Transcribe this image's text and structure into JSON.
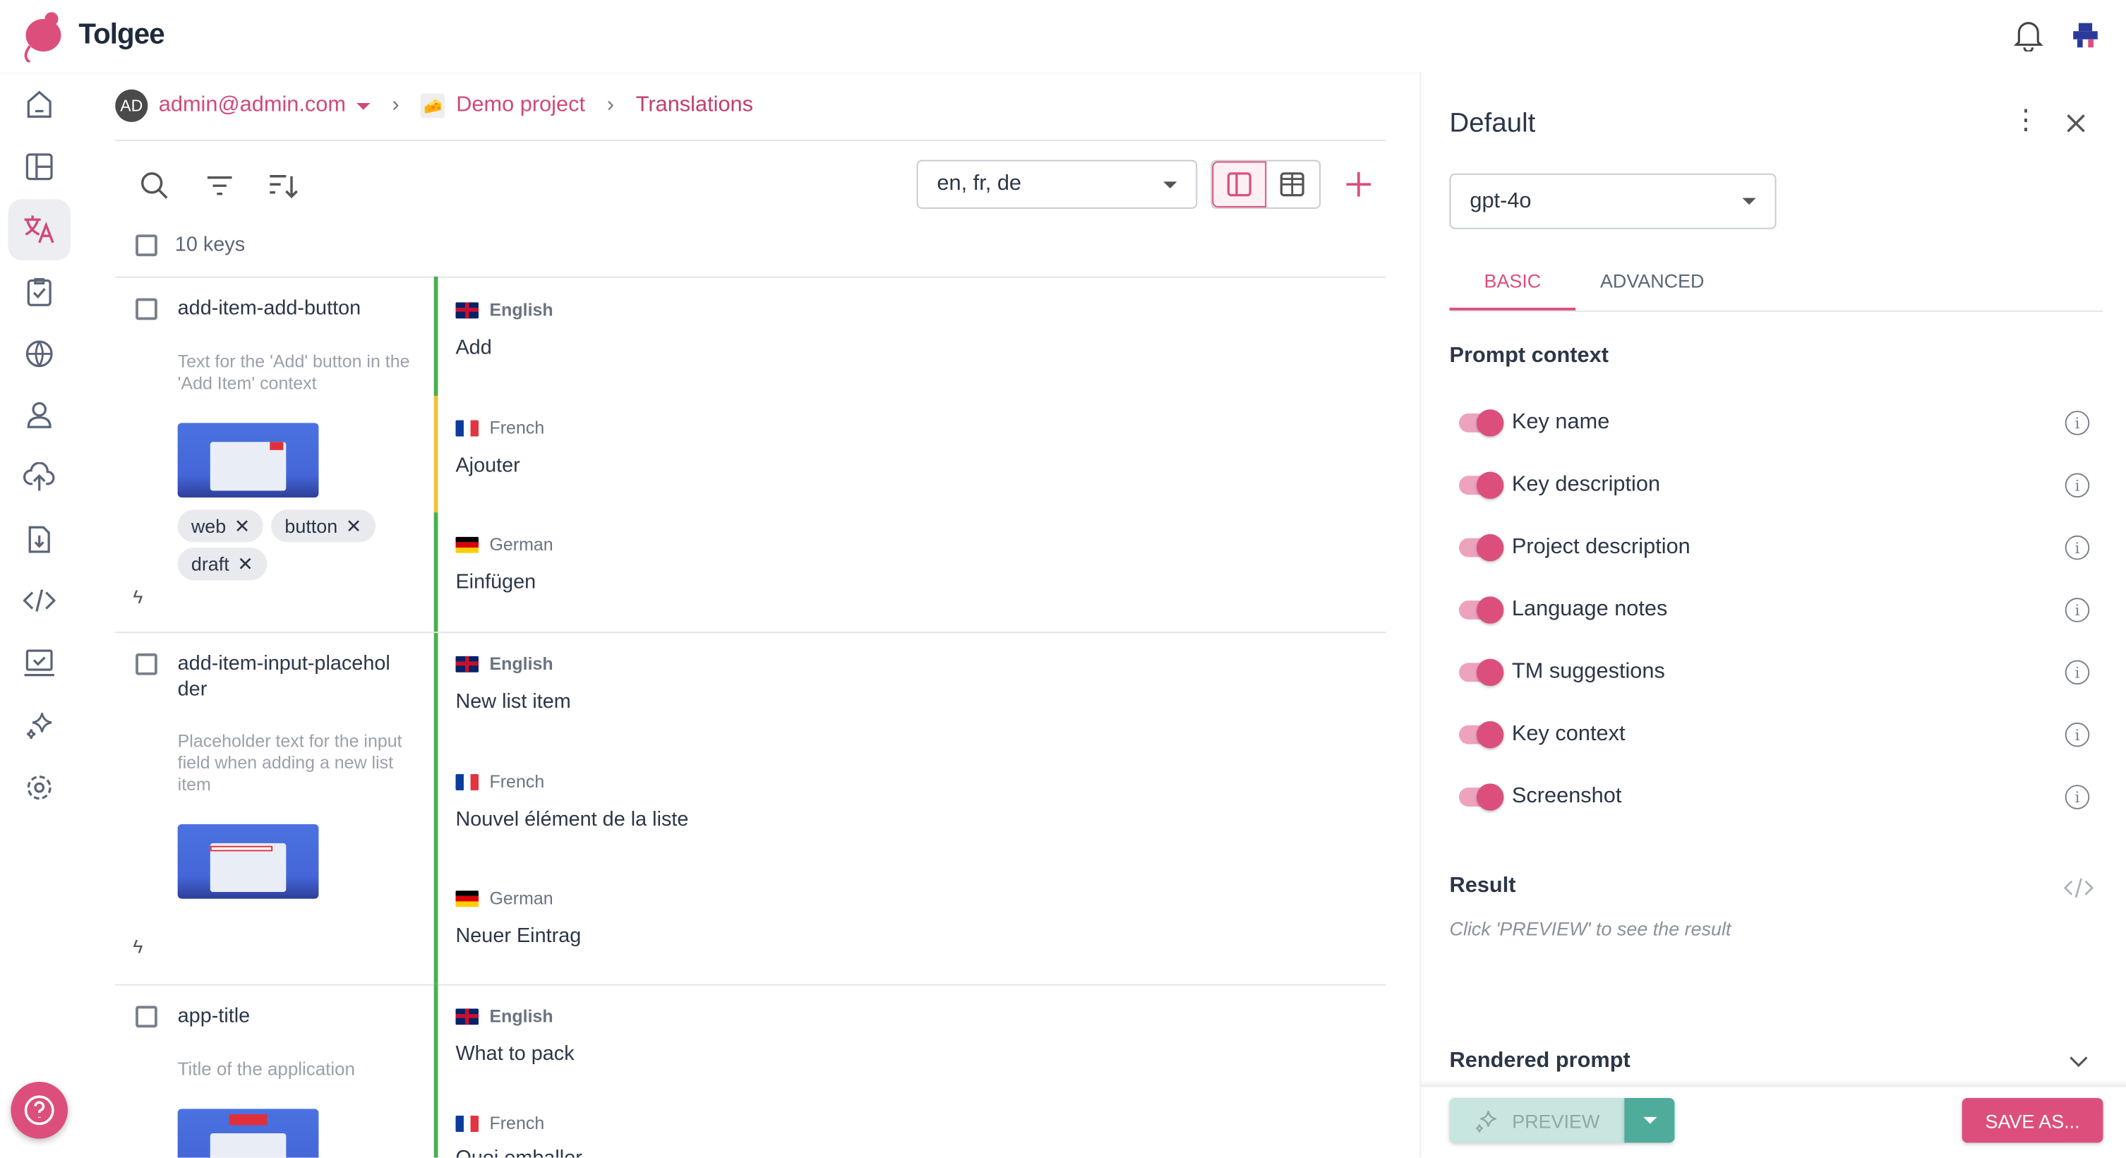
{
  "app": {
    "name": "Tolgee"
  },
  "breadcrumb": {
    "avatar_initials": "AD",
    "user": "admin@admin.com",
    "project": "Demo project",
    "page": "Translations"
  },
  "toolbar": {
    "languages": "en, fr, de"
  },
  "list": {
    "count_label": "10 keys"
  },
  "keys": [
    {
      "name": "add-item-add-button",
      "description": "Text for the 'Add' button in the 'Add Item' context",
      "tags": [
        "web",
        "button",
        "draft"
      ],
      "translations": [
        {
          "lang": "English",
          "text": "Add",
          "state": "#4caf50"
        },
        {
          "lang": "French",
          "text": "Ajouter",
          "state": "#f0c13a"
        },
        {
          "lang": "German",
          "text": "Einfügen",
          "state": "#4caf50"
        }
      ]
    },
    {
      "name": "add-item-input-placeholder",
      "name_wrapped": [
        "add-item-input-placehol",
        "der"
      ],
      "description": "Placeholder text for the input field when adding a new list item",
      "tags": [],
      "translations": [
        {
          "lang": "English",
          "text": "New list item",
          "state": "#4caf50"
        },
        {
          "lang": "French",
          "text": "Nouvel élément de la liste",
          "state": "#4caf50"
        },
        {
          "lang": "German",
          "text": "Neuer Eintrag",
          "state": "#4caf50"
        }
      ]
    },
    {
      "name": "app-title",
      "description": "Title of the application",
      "tags": [],
      "translations": [
        {
          "lang": "English",
          "text": "What to pack",
          "state": "#4caf50"
        },
        {
          "lang": "French",
          "text": "Quoi emballer",
          "state": "#4caf50"
        }
      ]
    }
  ],
  "panel": {
    "title": "Default",
    "model": "gpt-4o",
    "tabs": [
      {
        "label": "BASIC",
        "active": true
      },
      {
        "label": "ADVANCED",
        "active": false
      }
    ],
    "prompt_context_title": "Prompt context",
    "context_items": [
      {
        "label": "Key name",
        "enabled": true
      },
      {
        "label": "Key description",
        "enabled": true
      },
      {
        "label": "Project description",
        "enabled": true
      },
      {
        "label": "Language notes",
        "enabled": true
      },
      {
        "label": "TM suggestions",
        "enabled": true
      },
      {
        "label": "Key context",
        "enabled": true
      },
      {
        "label": "Screenshot",
        "enabled": true
      }
    ],
    "result_title": "Result",
    "result_hint": "Click 'PREVIEW' to see the result",
    "rendered_prompt": "Rendered prompt",
    "preview_label": "PREVIEW",
    "save_label": "SAVE AS..."
  },
  "colors": {
    "brand": "#dc4f7c",
    "teal": "#4fac9a",
    "green": "#4caf50",
    "yellow": "#f0c13a"
  }
}
